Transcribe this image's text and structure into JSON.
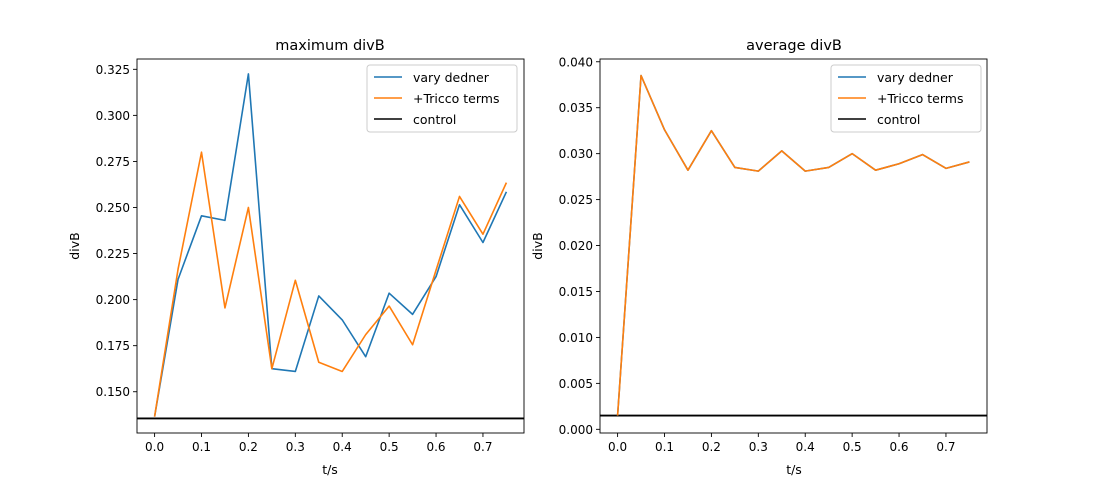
{
  "colors": {
    "vary_dedner": "#1f77b4",
    "tricco": "#ff7f0e",
    "control": "#000000"
  },
  "chart_data": [
    {
      "type": "line",
      "title": "maximum divB",
      "xlabel": "t/s",
      "ylabel": "divB",
      "xlim": [
        -0.0375,
        0.7875
      ],
      "ylim": [
        0.1276,
        0.3306
      ],
      "xticks": [
        0.0,
        0.1,
        0.2,
        0.3,
        0.4,
        0.5,
        0.6,
        0.7
      ],
      "xtick_labels": [
        "0.0",
        "0.1",
        "0.2",
        "0.3",
        "0.4",
        "0.5",
        "0.6",
        "0.7"
      ],
      "yticks": [
        0.15,
        0.175,
        0.2,
        0.225,
        0.25,
        0.275,
        0.3,
        0.325
      ],
      "ytick_labels": [
        "0.150",
        "0.175",
        "0.200",
        "0.225",
        "0.250",
        "0.275",
        "0.300",
        "0.325"
      ],
      "legend_position": "top-right",
      "x": [
        0.0,
        0.05,
        0.1,
        0.15,
        0.2,
        0.25,
        0.3,
        0.35,
        0.4,
        0.45,
        0.5,
        0.55,
        0.6,
        0.65,
        0.7,
        0.75
      ],
      "series": [
        {
          "name": "vary dedner",
          "color": "#1f77b4",
          "values": [
            0.1365,
            0.211,
            0.2455,
            0.243,
            0.3225,
            0.1625,
            0.161,
            0.202,
            0.189,
            0.169,
            0.2035,
            0.192,
            0.2125,
            0.2515,
            0.231,
            0.2585
          ]
        },
        {
          "name": "+Tricco terms",
          "color": "#ff7f0e",
          "values": [
            0.1365,
            0.2165,
            0.28,
            0.1955,
            0.25,
            0.1625,
            0.2105,
            0.166,
            0.161,
            0.181,
            0.1965,
            0.1755,
            0.216,
            0.256,
            0.2355,
            0.2635
          ]
        }
      ],
      "hlines": [
        {
          "name": "control",
          "color": "#000000",
          "value": 0.1355
        }
      ]
    },
    {
      "type": "line",
      "title": "average divB",
      "xlabel": "t/s",
      "ylabel": "divB",
      "xlim": [
        -0.0375,
        0.7875
      ],
      "ylim": [
        -0.0004,
        0.0403
      ],
      "xticks": [
        0.0,
        0.1,
        0.2,
        0.3,
        0.4,
        0.5,
        0.6,
        0.7
      ],
      "xtick_labels": [
        "0.0",
        "0.1",
        "0.2",
        "0.3",
        "0.4",
        "0.5",
        "0.6",
        "0.7"
      ],
      "yticks": [
        0.0,
        0.005,
        0.01,
        0.015,
        0.02,
        0.025,
        0.03,
        0.035,
        0.04
      ],
      "ytick_labels": [
        "0.000",
        "0.005",
        "0.010",
        "0.015",
        "0.020",
        "0.025",
        "0.030",
        "0.035",
        "0.040"
      ],
      "legend_position": "top-right",
      "x": [
        0.0,
        0.05,
        0.1,
        0.15,
        0.2,
        0.25,
        0.3,
        0.35,
        0.4,
        0.45,
        0.5,
        0.55,
        0.6,
        0.65,
        0.7,
        0.75
      ],
      "series": [
        {
          "name": "vary dedner",
          "color": "#1f77b4",
          "values": [
            0.0015,
            0.0385,
            0.0326,
            0.0282,
            0.0325,
            0.0285,
            0.0281,
            0.0303,
            0.0281,
            0.0285,
            0.03,
            0.0282,
            0.0289,
            0.0299,
            0.0284,
            0.0291
          ]
        },
        {
          "name": "+Tricco terms",
          "color": "#ff7f0e",
          "values": [
            0.0015,
            0.0385,
            0.0326,
            0.0282,
            0.0325,
            0.0285,
            0.0281,
            0.0303,
            0.0281,
            0.0285,
            0.03,
            0.0282,
            0.0289,
            0.0299,
            0.0284,
            0.0291
          ]
        }
      ],
      "hlines": [
        {
          "name": "control",
          "color": "#000000",
          "value": 0.0015
        }
      ]
    }
  ]
}
